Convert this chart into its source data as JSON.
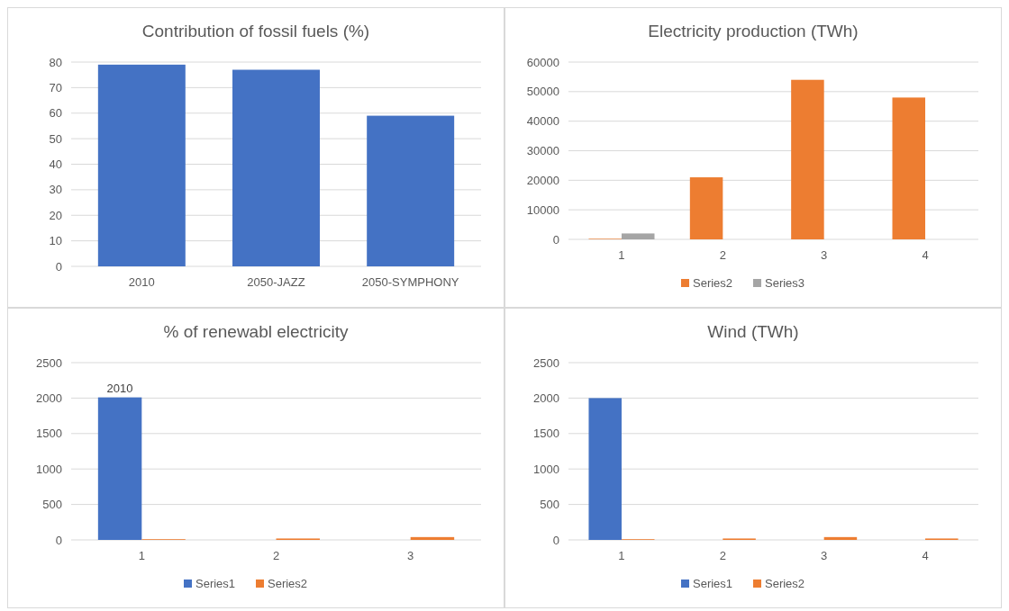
{
  "chart_data": [
    {
      "type": "bar",
      "title": "Contribution of fossil fuels (%)",
      "categories": [
        "2010",
        "2050-JAZZ",
        "2050-SYMPHONY"
      ],
      "values": [
        79,
        77,
        59
      ],
      "color": "#4472c4",
      "ylim": [
        0,
        80
      ],
      "yticks": [
        0,
        10,
        20,
        30,
        40,
        50,
        60,
        70,
        80
      ],
      "grid": "y"
    },
    {
      "type": "bar",
      "title": "Electricity production (TWh)",
      "categories": [
        "1",
        "2",
        "3",
        "4"
      ],
      "series": [
        {
          "name": "Series2",
          "color": "#ed7d31",
          "values": [
            200,
            21000,
            54000,
            48000
          ]
        },
        {
          "name": "Series3",
          "color": "#a5a5a5",
          "values": [
            2000,
            0,
            0,
            null
          ]
        }
      ],
      "ylim": [
        0,
        60000
      ],
      "yticks": [
        0,
        10000,
        20000,
        30000,
        40000,
        50000,
        60000
      ],
      "grid": "y",
      "legend": "bottom"
    },
    {
      "type": "bar",
      "title": "% of renewabl electricity",
      "categories": [
        "1",
        "2",
        "3"
      ],
      "series": [
        {
          "name": "Series1",
          "color": "#4472c4",
          "values": [
            2010,
            0,
            0
          ],
          "value_labels": [
            "2010",
            null,
            null
          ]
        },
        {
          "name": "Series2",
          "color": "#ed7d31",
          "values": [
            10,
            20,
            40
          ]
        }
      ],
      "ylim": [
        0,
        2500
      ],
      "yticks": [
        0,
        500,
        1000,
        1500,
        2000,
        2500
      ],
      "grid": "y",
      "legend": "bottom"
    },
    {
      "type": "bar",
      "title": "Wind (TWh)",
      "categories": [
        "1",
        "2",
        "3",
        "4"
      ],
      "series": [
        {
          "name": "Series1",
          "color": "#4472c4",
          "values": [
            2000,
            0,
            0,
            null
          ]
        },
        {
          "name": "Series2",
          "color": "#ed7d31",
          "values": [
            10,
            20,
            40,
            20
          ]
        }
      ],
      "ylim": [
        0,
        2500
      ],
      "yticks": [
        0,
        500,
        1000,
        1500,
        2000,
        2500
      ],
      "grid": "y",
      "legend": "bottom"
    }
  ]
}
